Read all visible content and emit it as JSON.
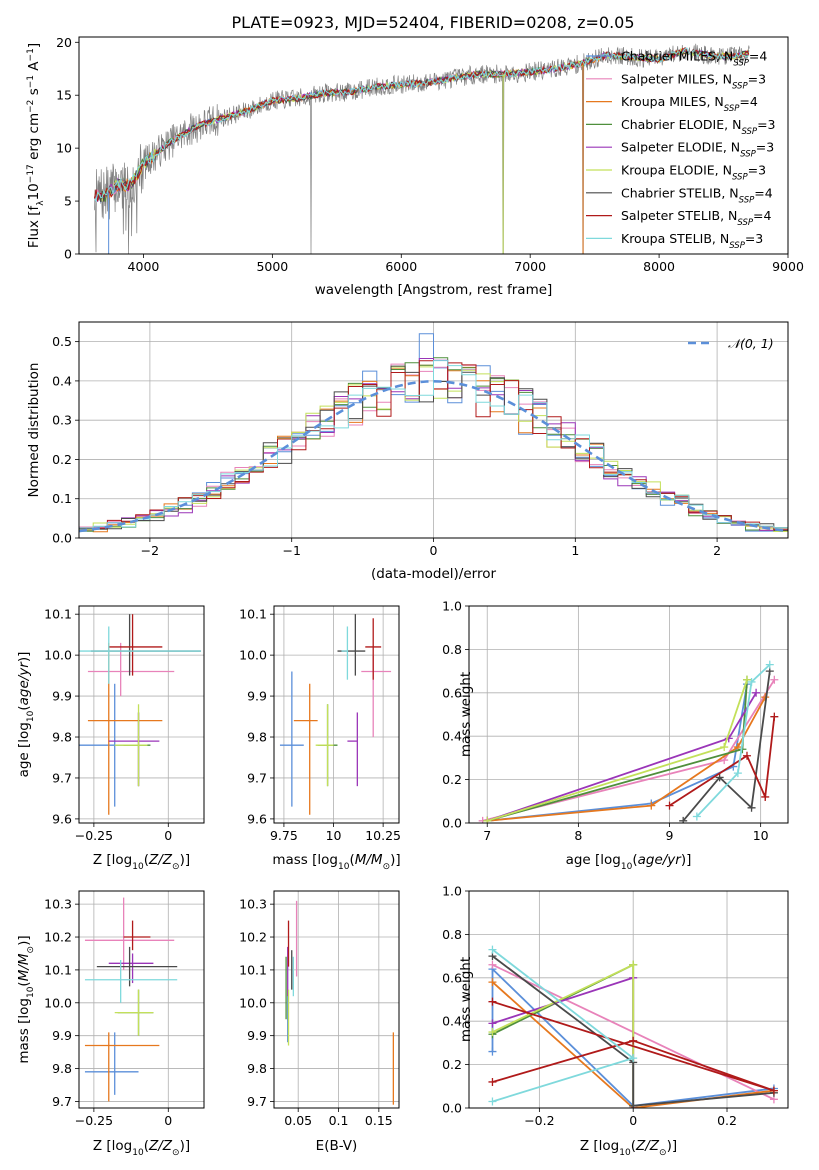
{
  "figure": {
    "title": "PLATE=0923, MJD=52404, FIBERID=0208, z=0.05"
  },
  "series": [
    {
      "name": "Chabrier MILES, N_SSP=4",
      "color": "#5b8fd9"
    },
    {
      "name": "Salpeter MILES, N_SSP=3",
      "color": "#e883ba"
    },
    {
      "name": "Kroupa MILES, N_SSP=4",
      "color": "#e6781e"
    },
    {
      "name": "Chabrier ELODIE, N_SSP=3",
      "color": "#4f8f3c"
    },
    {
      "name": "Salpeter ELODIE, N_SSP=3",
      "color": "#9a35b8"
    },
    {
      "name": "Kroupa ELODIE, N_SSP=3",
      "color": "#c3e05a"
    },
    {
      "name": "Chabrier STELIB, N_SSP=4",
      "color": "#4a4a4a"
    },
    {
      "name": "Salpeter STELIB, N_SSP=4",
      "color": "#b01a1a"
    },
    {
      "name": "Kroupa STELIB, N_SSP=3",
      "color": "#7fd9dc"
    }
  ],
  "chart_data": [
    {
      "id": "spectrum",
      "type": "line",
      "title": "PLATE=0923, MJD=52404, FIBERID=0208, z=0.05",
      "xlabel": "wavelength [Angstrom, rest frame]",
      "ylabel": "Flux [f_λ 10^-17 erg cm^-2 s^-1 A^-1]",
      "xlim": [
        3500,
        9000
      ],
      "ylim": [
        0,
        20.5
      ],
      "xticks": [
        4000,
        5000,
        6000,
        7000,
        8000,
        9000
      ],
      "yticks": [
        0,
        5,
        10,
        15,
        20
      ],
      "data_envelope": {
        "x": [
          3620,
          3700,
          3800,
          3900,
          4000,
          4200,
          4400,
          4600,
          4800,
          5000,
          5200,
          5400,
          5600,
          5800,
          6000,
          6200,
          6400,
          6600,
          6800,
          7000,
          7200,
          7400,
          7600,
          7800,
          8000,
          8200,
          8400,
          8600,
          8700
        ],
        "y": [
          5.5,
          5.5,
          6.5,
          6.5,
          8.5,
          10.5,
          12.0,
          12.8,
          13.5,
          14.5,
          14.7,
          15.2,
          15.3,
          15.8,
          16.0,
          16.2,
          16.6,
          17.0,
          17.0,
          17.2,
          17.5,
          18.0,
          18.8,
          18.6,
          18.4,
          19.2,
          18.7,
          18.7,
          19.0
        ]
      },
      "drops_to_zero_at": [
        5300,
        6790,
        7410
      ],
      "legend_location": "right"
    },
    {
      "id": "residuals",
      "type": "histogram",
      "xlabel": "(data-model)/error",
      "ylabel": "Normed distribution",
      "xlim": [
        -2.5,
        2.5
      ],
      "ylim": [
        0,
        0.55
      ],
      "xticks": [
        -2,
        -1,
        0,
        1,
        2
      ],
      "yticks": [
        0.0,
        0.1,
        0.2,
        0.3,
        0.4,
        0.5
      ],
      "bin_width": 0.1,
      "reference_curve": {
        "name": "N(0,1)",
        "mean": 0,
        "sigma": 1
      },
      "highlight_bins": {
        "x": [
          -0.1
        ],
        "heights": [
          0.52
        ]
      },
      "legend_location": "upper right"
    },
    {
      "id": "age_vs_Z",
      "type": "errorbar",
      "xlabel": "Z [log10(Z/Z_sun)]",
      "ylabel": "age [log10(age/yr)]",
      "xlim": [
        -0.3,
        0.12
      ],
      "ylim": [
        9.59,
        10.12
      ],
      "xticks": [
        -0.25,
        0.0
      ],
      "yticks": [
        9.6,
        9.7,
        9.8,
        9.9,
        10.0,
        10.1
      ],
      "points": [
        {
          "x": -0.18,
          "xerr": [
            0.14,
            0.08
          ],
          "y": 9.78,
          "yerr": [
            0.15,
            0.15
          ]
        },
        {
          "x": -0.16,
          "xerr": [
            0.11,
            0.18
          ],
          "y": 9.96,
          "yerr": [
            0.06,
            0.07
          ]
        },
        {
          "x": -0.2,
          "xerr": [
            0.07,
            0.18
          ],
          "y": 9.84,
          "yerr": [
            0.23,
            0.19
          ]
        },
        {
          "x": -0.1,
          "xerr": [
            0.05,
            0.04
          ],
          "y": 9.78,
          "yerr": [
            0.1,
            0.08
          ]
        },
        {
          "x": -0.1,
          "xerr": [
            0.1,
            0.07
          ],
          "y": 9.79,
          "yerr": [
            0.11,
            0.07
          ]
        },
        {
          "x": -0.1,
          "xerr": [
            0.08,
            0.03
          ],
          "y": 9.78,
          "yerr": [
            0.1,
            0.1
          ]
        },
        {
          "x": -0.13,
          "xerr": [
            0.13,
            0.24
          ],
          "y": 10.01,
          "yerr": [
            0.06,
            0.09
          ]
        },
        {
          "x": -0.12,
          "xerr": [
            0.08,
            0.1
          ],
          "y": 10.02,
          "yerr": [
            0.07,
            0.08
          ]
        },
        {
          "x": -0.2,
          "xerr": [
            0.1,
            0.31
          ],
          "y": 10.01,
          "yerr": [
            0.08,
            0.06
          ]
        }
      ]
    },
    {
      "id": "age_vs_mass",
      "type": "errorbar",
      "xlabel": "mass [log10(M/M_sun)]",
      "ylabel": "",
      "xlim": [
        9.7,
        10.33
      ],
      "ylim": [
        9.59,
        10.12
      ],
      "xticks": [
        9.75,
        10.0,
        10.25
      ],
      "yticks": [
        9.6,
        9.7,
        9.8,
        9.9,
        10.0,
        10.1
      ],
      "points": [
        {
          "x": 9.79,
          "xerr": [
            0.06,
            0.06
          ],
          "y": 9.78,
          "yerr": [
            0.15,
            0.18
          ]
        },
        {
          "x": 10.2,
          "xerr": [
            0.06,
            0.09
          ],
          "y": 9.96,
          "yerr": [
            0.16,
            0.04
          ]
        },
        {
          "x": 9.88,
          "xerr": [
            0.08,
            0.04
          ],
          "y": 9.84,
          "yerr": [
            0.23,
            0.09
          ]
        },
        {
          "x": 9.97,
          "xerr": [
            0.05,
            0.05
          ],
          "y": 9.78,
          "yerr": [
            0.1,
            0.1
          ]
        },
        {
          "x": 10.12,
          "xerr": [
            0.05,
            0.0
          ],
          "y": 9.79,
          "yerr": [
            0.11,
            0.07
          ]
        },
        {
          "x": 9.97,
          "xerr": [
            0.06,
            0.03
          ],
          "y": 9.78,
          "yerr": [
            0.1,
            0.1
          ]
        },
        {
          "x": 10.11,
          "xerr": [
            0.09,
            0.05
          ],
          "y": 10.01,
          "yerr": [
            0.06,
            0.09
          ]
        },
        {
          "x": 10.2,
          "xerr": [
            0.04,
            0.04
          ],
          "y": 10.02,
          "yerr": [
            0.08,
            0.07
          ]
        },
        {
          "x": 10.07,
          "xerr": [
            0.03,
            0.0
          ],
          "y": 10.01,
          "yerr": [
            0.07,
            0.06
          ]
        }
      ]
    },
    {
      "id": "weight_vs_age",
      "type": "line",
      "xlabel": "age [log10(age/yr)]",
      "ylabel": "mass weight",
      "xlim": [
        6.8,
        10.3
      ],
      "ylim": [
        0,
        1
      ],
      "xticks": [
        7,
        8,
        9,
        10
      ],
      "yticks": [
        0.0,
        0.2,
        0.4,
        0.6,
        0.8,
        1.0
      ],
      "lines": [
        {
          "x": [
            7.0,
            8.8,
            9.7,
            9.85
          ],
          "y": [
            0.01,
            0.09,
            0.26,
            0.64
          ]
        },
        {
          "x": [
            6.95,
            9.6,
            10.15
          ],
          "y": [
            0.01,
            0.29,
            0.66
          ]
        },
        {
          "x": [
            7.0,
            8.8,
            9.75,
            10.05
          ],
          "y": [
            0.01,
            0.08,
            0.35,
            0.58
          ]
        },
        {
          "x": [
            7.0,
            9.8,
            9.85
          ],
          "y": [
            0.01,
            0.34,
            0.66
          ]
        },
        {
          "x": [
            7.0,
            9.65,
            9.95
          ],
          "y": [
            0.01,
            0.39,
            0.6
          ]
        },
        {
          "x": [
            7.0,
            9.6,
            9.85
          ],
          "y": [
            0.01,
            0.35,
            0.66
          ]
        },
        {
          "x": [
            9.15,
            9.55,
            9.9,
            10.1
          ],
          "y": [
            0.01,
            0.21,
            0.07,
            0.7
          ]
        },
        {
          "x": [
            9.0,
            9.85,
            10.05,
            10.15
          ],
          "y": [
            0.08,
            0.31,
            0.12,
            0.49
          ]
        },
        {
          "x": [
            9.3,
            9.75,
            9.9,
            10.1
          ],
          "y": [
            0.03,
            0.23,
            0.65,
            0.73
          ]
        }
      ]
    },
    {
      "id": "mass_vs_Z",
      "type": "errorbar",
      "xlabel": "Z [log10(Z/Z_sun)]",
      "ylabel": "mass [log10(M/M_sun)]",
      "xlim": [
        -0.3,
        0.12
      ],
      "ylim": [
        9.68,
        10.34
      ],
      "xticks": [
        -0.25,
        0.0
      ],
      "yticks": [
        9.7,
        9.8,
        9.9,
        10.0,
        10.1,
        10.2,
        10.3
      ],
      "points": [
        {
          "x": -0.18,
          "xerr": [
            0.1,
            0.08
          ],
          "y": 9.79,
          "yerr": [
            0.07,
            0.12
          ]
        },
        {
          "x": -0.15,
          "xerr": [
            0.13,
            0.17
          ],
          "y": 10.19,
          "yerr": [
            0.09,
            0.13
          ]
        },
        {
          "x": -0.2,
          "xerr": [
            0.08,
            0.17
          ],
          "y": 9.87,
          "yerr": [
            0.17,
            0.04
          ]
        },
        {
          "x": -0.1,
          "xerr": [
            0.07,
            0.05
          ],
          "y": 9.97,
          "yerr": [
            0.07,
            0.07
          ]
        },
        {
          "x": -0.12,
          "xerr": [
            0.08,
            0.07
          ],
          "y": 10.12,
          "yerr": [
            0.06,
            0.03
          ]
        },
        {
          "x": -0.1,
          "xerr": [
            0.08,
            0.05
          ],
          "y": 9.97,
          "yerr": [
            0.07,
            0.07
          ]
        },
        {
          "x": -0.13,
          "xerr": [
            0.11,
            0.16
          ],
          "y": 10.11,
          "yerr": [
            0.06,
            0.06
          ]
        },
        {
          "x": -0.12,
          "xerr": [
            0.03,
            0.06
          ],
          "y": 10.2,
          "yerr": [
            0.04,
            0.05
          ]
        },
        {
          "x": -0.16,
          "xerr": [
            0.12,
            0.19
          ],
          "y": 10.07,
          "yerr": [
            0.07,
            0.06
          ]
        }
      ]
    },
    {
      "id": "mass_vs_ebv",
      "type": "errorbar",
      "xlabel": "E(B-V)",
      "ylabel": "",
      "xlim": [
        0.02,
        0.175
      ],
      "ylim": [
        9.68,
        10.34
      ],
      "xticks": [
        0.05,
        0.1,
        0.15
      ],
      "yticks": [
        9.7,
        9.8,
        9.9,
        10.0,
        10.1,
        10.2,
        10.3
      ],
      "points": [
        {
          "x": 0.037,
          "y": 9.95,
          "yerr": [
            0.07,
            0.09
          ]
        },
        {
          "x": 0.048,
          "y": 10.18,
          "yerr": [
            0.1,
            0.13
          ]
        },
        {
          "x": 0.168,
          "y": 9.79,
          "yerr": [
            0.1,
            0.12
          ]
        },
        {
          "x": 0.035,
          "y": 10.05,
          "yerr": [
            0.1,
            0.09
          ]
        },
        {
          "x": 0.037,
          "y": 10.1,
          "yerr": [
            0.08,
            0.07
          ]
        },
        {
          "x": 0.038,
          "y": 9.95,
          "yerr": [
            0.08,
            0.09
          ]
        },
        {
          "x": 0.042,
          "y": 10.1,
          "yerr": [
            0.06,
            0.06
          ]
        },
        {
          "x": 0.038,
          "y": 10.18,
          "yerr": [
            0.07,
            0.07
          ]
        },
        {
          "x": 0.044,
          "y": 10.08,
          "yerr": [
            0.06,
            0.06
          ]
        }
      ]
    },
    {
      "id": "weight_vs_Z",
      "type": "line",
      "xlabel": "Z [log10(Z/Z_sun)]",
      "ylabel": "mass weight",
      "xlim": [
        -0.35,
        0.33
      ],
      "ylim": [
        0,
        1
      ],
      "xticks": [
        -0.2,
        0.0,
        0.2
      ],
      "yticks": [
        0.0,
        0.2,
        0.4,
        0.6,
        0.8,
        1.0
      ],
      "lines": [
        {
          "x": [
            -0.3,
            -0.3,
            0.0,
            0.3
          ],
          "y": [
            0.26,
            0.64,
            0.01,
            0.09
          ]
        },
        {
          "x": [
            -0.3,
            0.3
          ],
          "y": [
            0.66,
            0.04
          ]
        },
        {
          "x": [
            -0.3,
            0.0,
            0.3
          ],
          "y": [
            0.58,
            0.0,
            0.08
          ]
        },
        {
          "x": [
            -0.3,
            0.0,
            0.0
          ],
          "y": [
            0.34,
            0.66,
            0.01
          ]
        },
        {
          "x": [
            -0.3,
            0.0,
            0.0
          ],
          "y": [
            0.39,
            0.6,
            0.0
          ]
        },
        {
          "x": [
            -0.3,
            0.0,
            0.0
          ],
          "y": [
            0.35,
            0.66,
            0.01
          ]
        },
        {
          "x": [
            -0.3,
            0.0,
            0.0,
            0.3
          ],
          "y": [
            0.7,
            0.21,
            0.01,
            0.07
          ]
        },
        {
          "x": [
            -0.3,
            0.0,
            0.3,
            -0.3
          ],
          "y": [
            0.12,
            0.31,
            0.08,
            0.49
          ]
        },
        {
          "x": [
            -0.3,
            0.0,
            -0.3
          ],
          "y": [
            0.03,
            0.23,
            0.73
          ]
        }
      ]
    }
  ]
}
